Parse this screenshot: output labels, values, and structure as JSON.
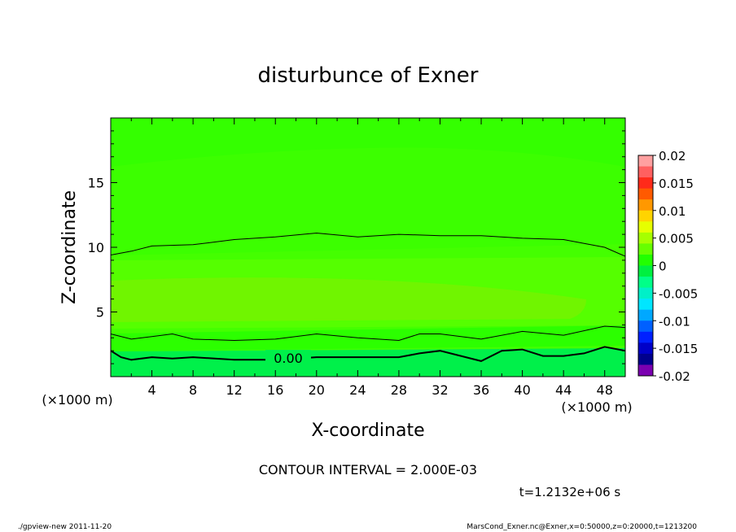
{
  "chart_data": {
    "type": "heatmap",
    "title": "disturbunce of Exner",
    "xlabel": "X-coordinate",
    "ylabel": "Z-coordinate",
    "x_unit_left": "(×1000 m)",
    "x_unit_right": "(×1000 m)",
    "xlim": [
      0,
      50
    ],
    "ylim": [
      0,
      20
    ],
    "x_ticks": [
      "4",
      "8",
      "12",
      "16",
      "20",
      "24",
      "28",
      "32",
      "36",
      "40",
      "44",
      "48"
    ],
    "y_ticks": [
      "5",
      "10",
      "15"
    ],
    "colorbar": {
      "labels": [
        "0.02",
        "0.015",
        "0.01",
        "0.005",
        "0",
        "-0.005",
        "-0.01",
        "-0.015",
        "-0.02"
      ],
      "levels": [
        0.02,
        0.015,
        0.01,
        0.005,
        0,
        -0.005,
        -0.01,
        -0.015,
        -0.02
      ],
      "colors": [
        "#ffa0a0",
        "#ff6060",
        "#ff2a1a",
        "#ff5a00",
        "#ff9800",
        "#ffd400",
        "#e6ff00",
        "#a6ff00",
        "#66ff00",
        "#22ff00",
        "#00f040",
        "#00ff88",
        "#00f0c8",
        "#00e6ff",
        "#00a8ff",
        "#0060ff",
        "#0020ff",
        "#0000c8",
        "#00008c",
        "#7a00b0"
      ]
    },
    "contour_label": "0.00",
    "contours": [
      {
        "level": 0.002,
        "x": [
          0,
          2,
          4,
          8,
          12,
          16,
          20,
          24,
          28,
          32,
          36,
          40,
          44,
          48,
          50
        ],
        "y": [
          9.4,
          9.7,
          10.1,
          10.2,
          10.6,
          10.8,
          11.1,
          10.8,
          11.0,
          10.9,
          10.9,
          10.7,
          10.6,
          10.0,
          9.3
        ]
      },
      {
        "level": -0.002,
        "x": [
          0,
          2,
          4,
          6,
          8,
          12,
          16,
          20,
          24,
          28,
          30,
          32,
          36,
          40,
          44,
          48,
          50
        ],
        "y": [
          3.3,
          2.9,
          3.1,
          3.3,
          2.9,
          2.8,
          2.9,
          3.3,
          3.0,
          2.8,
          3.3,
          3.3,
          2.9,
          3.5,
          3.2,
          3.9,
          3.8
        ]
      },
      {
        "level": 0.0,
        "x": [
          0,
          1,
          2,
          4,
          6,
          8,
          12,
          16,
          20,
          24,
          28,
          30,
          32,
          36,
          38,
          40,
          42,
          44,
          46,
          48,
          50
        ],
        "y": [
          2.0,
          1.5,
          1.3,
          1.5,
          1.4,
          1.5,
          1.3,
          1.3,
          1.5,
          1.5,
          1.5,
          1.8,
          2.0,
          1.2,
          2.0,
          2.1,
          1.6,
          1.6,
          1.8,
          2.3,
          2.0
        ]
      }
    ],
    "field_bands": [
      {
        "z": [
          0,
          2
        ],
        "value": -0.003
      },
      {
        "z": [
          2,
          3.3
        ],
        "value": 0.001
      },
      {
        "z": [
          3.3,
          9.5
        ],
        "value": 0.004
      },
      {
        "z": [
          9.5,
          16
        ],
        "value": 0.002
      },
      {
        "z": [
          16,
          20
        ],
        "value": 0.0015
      }
    ]
  },
  "contour_interval": "CONTOUR INTERVAL = 2.000E-03",
  "time_label": "t=1.2132e+06 s",
  "footer_left": "./gpview-new   2011-11-20",
  "footer_right": "MarsCond_Exner.nc@Exner,x=0:50000,z=0:20000,t=1213200"
}
